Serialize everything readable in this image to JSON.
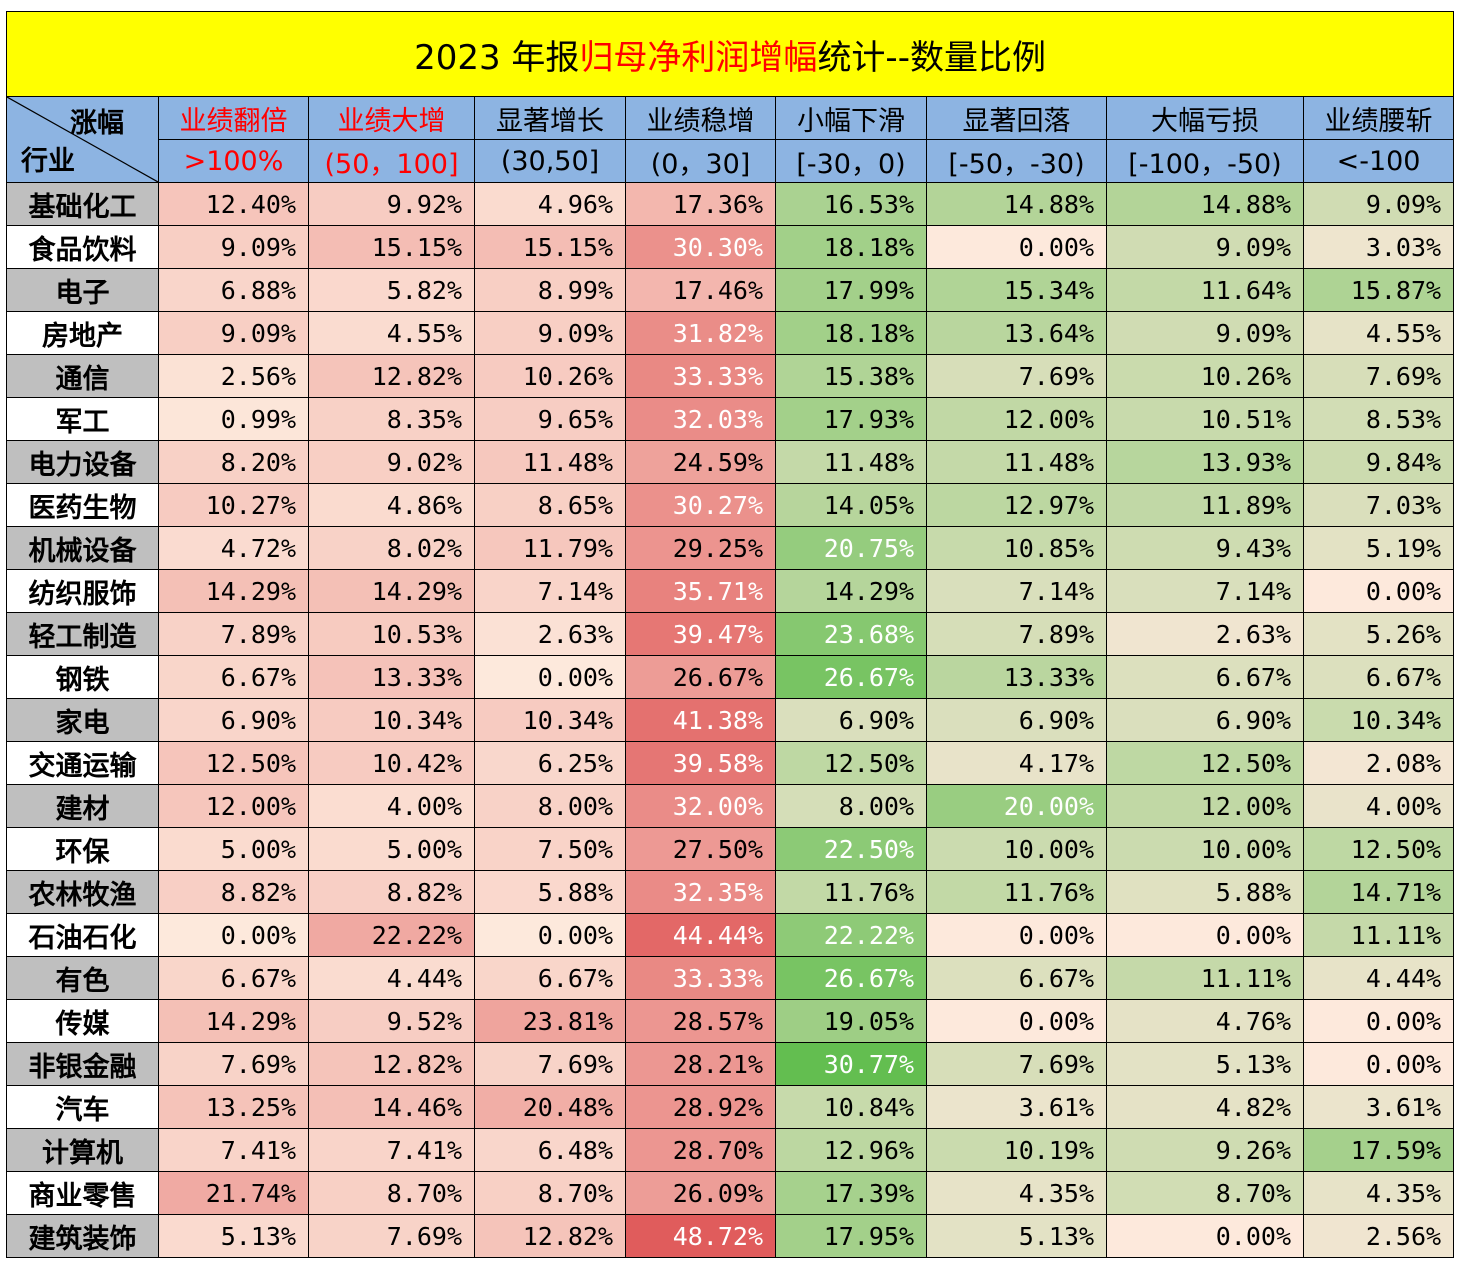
{
  "title": {
    "prefix": "2023 年报",
    "highlight": "归母净利润增幅",
    "suffix": "统计--数量比例"
  },
  "corner": {
    "top": "涨幅",
    "bottom": "行业"
  },
  "chart_data": {
    "type": "table",
    "columns": [
      {
        "name": "业绩翻倍",
        "range": ">100%",
        "red": true
      },
      {
        "name": "业绩大增",
        "range": "(50，100]",
        "red": true
      },
      {
        "name": "显著增长",
        "range": "(30,50]",
        "red": false
      },
      {
        "name": "业绩稳增",
        "range": "(0，30]",
        "red": false
      },
      {
        "name": "小幅下滑",
        "range": "[-30，0)",
        "red": false
      },
      {
        "name": "显著回落",
        "range": "[-50，-30)",
        "red": false
      },
      {
        "name": "大幅亏损",
        "range": "[-100，-50)",
        "red": false
      },
      {
        "name": "业绩腰斩",
        "range": "<-100",
        "red": false
      }
    ],
    "rows": [
      {
        "industry": "基础化工",
        "values": [
          "12.40%",
          "9.92%",
          "4.96%",
          "17.36%",
          "16.53%",
          "14.88%",
          "14.88%",
          "9.09%"
        ]
      },
      {
        "industry": "食品饮料",
        "values": [
          "9.09%",
          "15.15%",
          "15.15%",
          "30.30%",
          "18.18%",
          "0.00%",
          "9.09%",
          "3.03%"
        ]
      },
      {
        "industry": "电子",
        "values": [
          "6.88%",
          "5.82%",
          "8.99%",
          "17.46%",
          "17.99%",
          "15.34%",
          "11.64%",
          "15.87%"
        ]
      },
      {
        "industry": "房地产",
        "values": [
          "9.09%",
          "4.55%",
          "9.09%",
          "31.82%",
          "18.18%",
          "13.64%",
          "9.09%",
          "4.55%"
        ]
      },
      {
        "industry": "通信",
        "values": [
          "2.56%",
          "12.82%",
          "10.26%",
          "33.33%",
          "15.38%",
          "7.69%",
          "10.26%",
          "7.69%"
        ]
      },
      {
        "industry": "军工",
        "values": [
          "0.99%",
          "8.35%",
          "9.65%",
          "32.03%",
          "17.93%",
          "12.00%",
          "10.51%",
          "8.53%"
        ]
      },
      {
        "industry": "电力设备",
        "values": [
          "8.20%",
          "9.02%",
          "11.48%",
          "24.59%",
          "11.48%",
          "11.48%",
          "13.93%",
          "9.84%"
        ]
      },
      {
        "industry": "医药生物",
        "values": [
          "10.27%",
          "4.86%",
          "8.65%",
          "30.27%",
          "14.05%",
          "12.97%",
          "11.89%",
          "7.03%"
        ]
      },
      {
        "industry": "机械设备",
        "values": [
          "4.72%",
          "8.02%",
          "11.79%",
          "29.25%",
          "20.75%",
          "10.85%",
          "9.43%",
          "5.19%"
        ]
      },
      {
        "industry": "纺织服饰",
        "values": [
          "14.29%",
          "14.29%",
          "7.14%",
          "35.71%",
          "14.29%",
          "7.14%",
          "7.14%",
          "0.00%"
        ]
      },
      {
        "industry": "轻工制造",
        "values": [
          "7.89%",
          "10.53%",
          "2.63%",
          "39.47%",
          "23.68%",
          "7.89%",
          "2.63%",
          "5.26%"
        ]
      },
      {
        "industry": "钢铁",
        "values": [
          "6.67%",
          "13.33%",
          "0.00%",
          "26.67%",
          "26.67%",
          "13.33%",
          "6.67%",
          "6.67%"
        ]
      },
      {
        "industry": "家电",
        "values": [
          "6.90%",
          "10.34%",
          "10.34%",
          "41.38%",
          "6.90%",
          "6.90%",
          "6.90%",
          "10.34%"
        ]
      },
      {
        "industry": "交通运输",
        "values": [
          "12.50%",
          "10.42%",
          "6.25%",
          "39.58%",
          "12.50%",
          "4.17%",
          "12.50%",
          "2.08%"
        ]
      },
      {
        "industry": "建材",
        "values": [
          "12.00%",
          "4.00%",
          "8.00%",
          "32.00%",
          "8.00%",
          "20.00%",
          "12.00%",
          "4.00%"
        ]
      },
      {
        "industry": "环保",
        "values": [
          "5.00%",
          "5.00%",
          "7.50%",
          "27.50%",
          "22.50%",
          "10.00%",
          "10.00%",
          "12.50%"
        ]
      },
      {
        "industry": "农林牧渔",
        "values": [
          "8.82%",
          "8.82%",
          "5.88%",
          "32.35%",
          "11.76%",
          "11.76%",
          "5.88%",
          "14.71%"
        ]
      },
      {
        "industry": "石油石化",
        "values": [
          "0.00%",
          "22.22%",
          "0.00%",
          "44.44%",
          "22.22%",
          "0.00%",
          "0.00%",
          "11.11%"
        ]
      },
      {
        "industry": "有色",
        "values": [
          "6.67%",
          "4.44%",
          "6.67%",
          "33.33%",
          "26.67%",
          "6.67%",
          "11.11%",
          "4.44%"
        ]
      },
      {
        "industry": "传媒",
        "values": [
          "14.29%",
          "9.52%",
          "23.81%",
          "28.57%",
          "19.05%",
          "0.00%",
          "4.76%",
          "0.00%"
        ]
      },
      {
        "industry": "非银金融",
        "values": [
          "7.69%",
          "12.82%",
          "7.69%",
          "28.21%",
          "30.77%",
          "7.69%",
          "5.13%",
          "0.00%"
        ]
      },
      {
        "industry": "汽车",
        "values": [
          "13.25%",
          "14.46%",
          "20.48%",
          "28.92%",
          "10.84%",
          "3.61%",
          "4.82%",
          "3.61%"
        ]
      },
      {
        "industry": "计算机",
        "values": [
          "7.41%",
          "7.41%",
          "6.48%",
          "28.70%",
          "12.96%",
          "10.19%",
          "9.26%",
          "17.59%"
        ]
      },
      {
        "industry": "商业零售",
        "values": [
          "21.74%",
          "8.70%",
          "8.70%",
          "26.09%",
          "17.39%",
          "4.35%",
          "8.70%",
          "4.35%"
        ]
      },
      {
        "industry": "建筑装饰",
        "values": [
          "5.13%",
          "7.69%",
          "12.82%",
          "48.72%",
          "17.95%",
          "5.13%",
          "0.00%",
          "2.56%"
        ]
      }
    ]
  },
  "colors": {
    "title_bg": "#ffff00",
    "header_bg": "#8db4e2",
    "highlight_text": "#ff0000",
    "industry_odd_bg": "#bfbfbf",
    "scale_red_low": "#fde9dc",
    "scale_red_high": "#e05c5c",
    "scale_green_low": "#fde9dc",
    "scale_green_high": "#63be50"
  }
}
